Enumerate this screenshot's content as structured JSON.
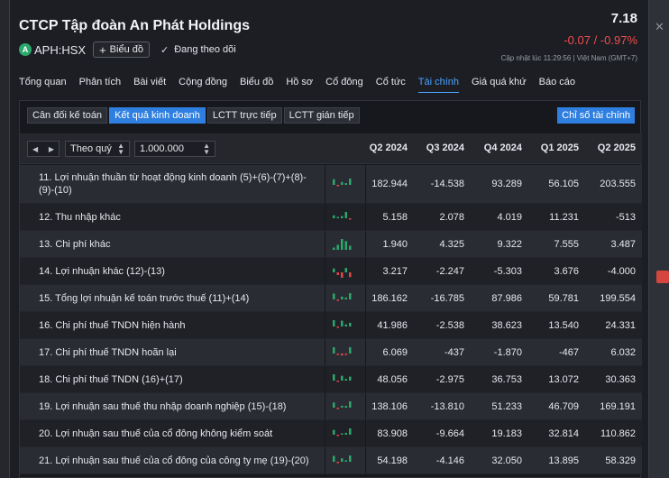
{
  "header": {
    "company_name": "CTCP Tập đoàn An Phát Holdings",
    "ticker": "APH:HSX",
    "chart_button": "Biểu đồ",
    "follow_label": "Đang theo dõi",
    "price": "7.18",
    "change": "-0.07 / -0.97%",
    "updated": "Cập nhật lúc   11:29:56 | Việt Nam (GMT+7)"
  },
  "nav": [
    "Tổng quan",
    "Phân tích",
    "Bài viết",
    "Cộng đồng",
    "Biểu đồ",
    "Hồ sơ",
    "Cổ đông",
    "Cổ tức",
    "Tài chính",
    "Giá quá khứ",
    "Báo cáo"
  ],
  "nav_active": 8,
  "subtabs": [
    "Cân đối kế toán",
    "Kết quả kinh doanh",
    "LCTT trực tiếp",
    "LCTT gián tiếp"
  ],
  "subtab_active": 1,
  "ratio_button": "Chỉ số tài chính",
  "controls": {
    "period": "Theo quý",
    "unit": "1.000.000"
  },
  "columns": [
    "Q2 2024",
    "Q3 2024",
    "Q4 2024",
    "Q1 2025",
    "Q2 2025"
  ],
  "colors": {
    "positive_bar": "#2aa86b",
    "negative_bar": "#e04848",
    "accent": "#2f7fe0"
  },
  "rows": [
    {
      "label": "11. Lợi nhuận thuần từ hoạt động kinh doanh (5)+(6)-(7)+(8)-(9)-(10)",
      "values": [
        "182.944",
        "-14.538",
        "93.289",
        "56.105",
        "203.555"
      ],
      "nums": [
        182.944,
        -14.538,
        93.289,
        56.105,
        203.555
      ]
    },
    {
      "label": "12. Thu nhập khác",
      "values": [
        "5.158",
        "2.078",
        "4.019",
        "11.231",
        "-513"
      ],
      "nums": [
        5.158,
        2.078,
        4.019,
        11.231,
        -0.513
      ]
    },
    {
      "label": "13. Chi phí khác",
      "values": [
        "1.940",
        "4.325",
        "9.322",
        "7.555",
        "3.487"
      ],
      "nums": [
        1.94,
        4.325,
        9.322,
        7.555,
        3.487
      ]
    },
    {
      "label": "14. Lợi nhuận khác (12)-(13)",
      "values": [
        "3.217",
        "-2.247",
        "-5.303",
        "3.676",
        "-4.000"
      ],
      "nums": [
        3.217,
        -2.247,
        -5.303,
        3.676,
        -4.0
      ]
    },
    {
      "label": "15. Tổng lợi nhuận kế toán trước thuế (11)+(14)",
      "values": [
        "186.162",
        "-16.785",
        "87.986",
        "59.781",
        "199.554"
      ],
      "nums": [
        186.162,
        -16.785,
        87.986,
        59.781,
        199.554
      ]
    },
    {
      "label": "16. Chi phí thuế TNDN hiện hành",
      "values": [
        "41.986",
        "-2.538",
        "38.623",
        "13.540",
        "24.331"
      ],
      "nums": [
        41.986,
        -2.538,
        38.623,
        13.54,
        24.331
      ]
    },
    {
      "label": "17. Chi phí thuế TNDN hoãn lại",
      "values": [
        "6.069",
        "-437",
        "-1.870",
        "-467",
        "6.032"
      ],
      "nums": [
        6.069,
        -0.437,
        -1.87,
        -0.467,
        6.032
      ]
    },
    {
      "label": "18. Chi phí thuế TNDN (16)+(17)",
      "values": [
        "48.056",
        "-2.975",
        "36.753",
        "13.072",
        "30.363"
      ],
      "nums": [
        48.056,
        -2.975,
        36.753,
        13.072,
        30.363
      ]
    },
    {
      "label": "19. Lợi nhuận sau thuế thu nhập doanh nghiệp (15)-(18)",
      "values": [
        "138.106",
        "-13.810",
        "51.233",
        "46.709",
        "169.191"
      ],
      "nums": [
        138.106,
        -13.81,
        51.233,
        46.709,
        169.191
      ]
    },
    {
      "label": "20. Lợi nhuận sau thuế của cổ đông không kiểm soát",
      "values": [
        "83.908",
        "-9.664",
        "19.183",
        "32.814",
        "110.862"
      ],
      "nums": [
        83.908,
        -9.664,
        19.183,
        32.814,
        110.862
      ]
    },
    {
      "label": "21. Lợi nhuận sau thuế của cổ đông của công ty mẹ (19)-(20)",
      "values": [
        "54.198",
        "-4.146",
        "32.050",
        "13.895",
        "58.329"
      ],
      "nums": [
        54.198,
        -4.146,
        32.05,
        13.895,
        58.329
      ]
    }
  ]
}
